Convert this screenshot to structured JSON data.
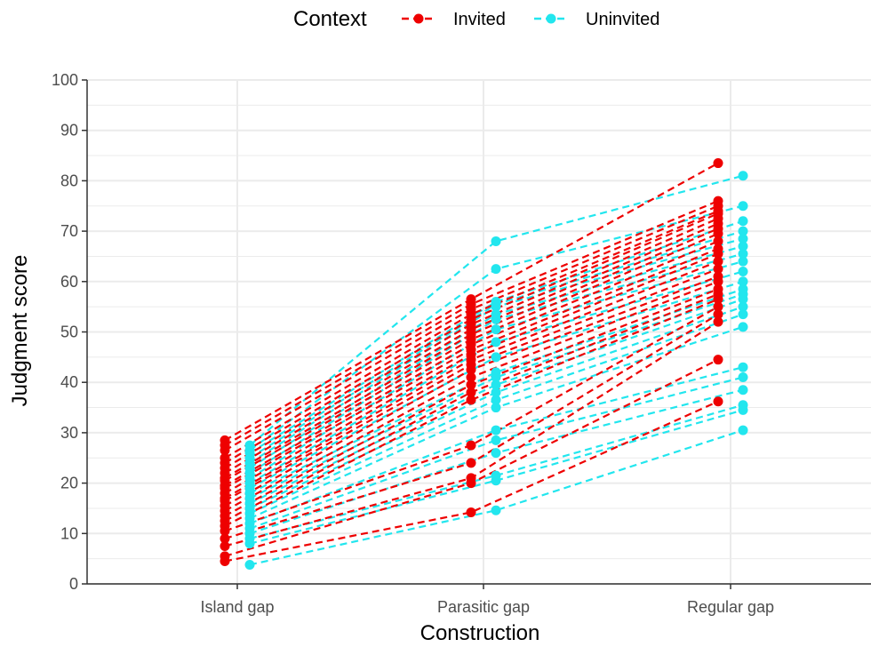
{
  "chart_data": {
    "type": "line",
    "xlabel": "Construction",
    "ylabel": "Judgment score",
    "categories": [
      "Island gap",
      "Parasitic gap",
      "Regular gap"
    ],
    "ylim": [
      0,
      100
    ],
    "yticks": [
      0,
      10,
      20,
      30,
      40,
      50,
      60,
      70,
      80,
      90,
      100
    ],
    "grid": true,
    "legend": {
      "title": "Context",
      "position": "top",
      "entries": [
        "Invited",
        "Uninvited"
      ]
    },
    "colors": {
      "Invited": "#ee0000",
      "Uninvited": "#22e6ee"
    },
    "line_style": "dashed",
    "series": [
      {
        "group": "Invited",
        "values": [
          4.5,
          14.2,
          36.2
        ]
      },
      {
        "group": "Invited",
        "values": [
          5.5,
          20.0,
          44.5
        ]
      },
      {
        "group": "Invited",
        "values": [
          7.5,
          21.0,
          52.0
        ]
      },
      {
        "group": "Invited",
        "values": [
          9.0,
          24.0,
          53.5
        ]
      },
      {
        "group": "Invited",
        "values": [
          10.5,
          27.5,
          55.0
        ]
      },
      {
        "group": "Invited",
        "values": [
          11.5,
          36.5,
          56.5
        ]
      },
      {
        "group": "Invited",
        "values": [
          12.5,
          38.0,
          57.5
        ]
      },
      {
        "group": "Invited",
        "values": [
          13.5,
          39.5,
          58.5
        ]
      },
      {
        "group": "Invited",
        "values": [
          14.5,
          41.0,
          60.0
        ]
      },
      {
        "group": "Invited",
        "values": [
          15.5,
          42.5,
          61.0
        ]
      },
      {
        "group": "Invited",
        "values": [
          16.5,
          43.5,
          62.5
        ]
      },
      {
        "group": "Invited",
        "values": [
          17.0,
          44.5,
          64.0
        ]
      },
      {
        "group": "Invited",
        "values": [
          18.0,
          45.5,
          65.5
        ]
      },
      {
        "group": "Invited",
        "values": [
          19.0,
          46.5,
          66.5
        ]
      },
      {
        "group": "Invited",
        "values": [
          19.5,
          47.5,
          68.0
        ]
      },
      {
        "group": "Invited",
        "values": [
          20.5,
          48.5,
          69.5
        ]
      },
      {
        "group": "Invited",
        "values": [
          21.0,
          49.5,
          70.5
        ]
      },
      {
        "group": "Invited",
        "values": [
          22.0,
          50.5,
          71.5
        ]
      },
      {
        "group": "Invited",
        "values": [
          23.0,
          51.5,
          72.5
        ]
      },
      {
        "group": "Invited",
        "values": [
          24.0,
          52.5,
          73.5
        ]
      },
      {
        "group": "Invited",
        "values": [
          25.0,
          53.5,
          74.0
        ]
      },
      {
        "group": "Invited",
        "values": [
          26.5,
          54.5,
          75.0
        ]
      },
      {
        "group": "Invited",
        "values": [
          27.5,
          55.5,
          76.0
        ]
      },
      {
        "group": "Invited",
        "values": [
          28.5,
          56.5,
          83.5
        ]
      },
      {
        "group": "Uninvited",
        "values": [
          3.8,
          14.6,
          30.5
        ]
      },
      {
        "group": "Uninvited",
        "values": [
          8.0,
          20.5,
          34.5
        ]
      },
      {
        "group": "Uninvited",
        "values": [
          9.0,
          21.5,
          35.5
        ]
      },
      {
        "group": "Uninvited",
        "values": [
          10.0,
          26.0,
          38.5
        ]
      },
      {
        "group": "Uninvited",
        "values": [
          11.0,
          28.5,
          41.0
        ]
      },
      {
        "group": "Uninvited",
        "values": [
          12.0,
          30.5,
          43.0
        ]
      },
      {
        "group": "Uninvited",
        "values": [
          13.0,
          35.0,
          51.0
        ]
      },
      {
        "group": "Uninvited",
        "values": [
          14.0,
          36.5,
          53.5
        ]
      },
      {
        "group": "Uninvited",
        "values": [
          15.0,
          38.0,
          55.0
        ]
      },
      {
        "group": "Uninvited",
        "values": [
          16.0,
          39.5,
          56.5
        ]
      },
      {
        "group": "Uninvited",
        "values": [
          17.0,
          41.0,
          57.5
        ]
      },
      {
        "group": "Uninvited",
        "values": [
          18.0,
          42.0,
          58.5
        ]
      },
      {
        "group": "Uninvited",
        "values": [
          19.0,
          45.0,
          60.0
        ]
      },
      {
        "group": "Uninvited",
        "values": [
          20.0,
          48.0,
          62.0
        ]
      },
      {
        "group": "Uninvited",
        "values": [
          21.0,
          50.5,
          64.0
        ]
      },
      {
        "group": "Uninvited",
        "values": [
          22.0,
          52.5,
          65.5
        ]
      },
      {
        "group": "Uninvited",
        "values": [
          23.0,
          53.5,
          67.0
        ]
      },
      {
        "group": "Uninvited",
        "values": [
          24.0,
          55.0,
          68.5
        ]
      },
      {
        "group": "Uninvited",
        "values": [
          25.0,
          55.5,
          70.0
        ]
      },
      {
        "group": "Uninvited",
        "values": [
          26.0,
          56.0,
          72.0
        ]
      },
      {
        "group": "Uninvited",
        "values": [
          26.5,
          62.5,
          75.0
        ]
      },
      {
        "group": "Uninvited",
        "values": [
          27.5,
          68.0,
          81.0
        ]
      }
    ]
  }
}
